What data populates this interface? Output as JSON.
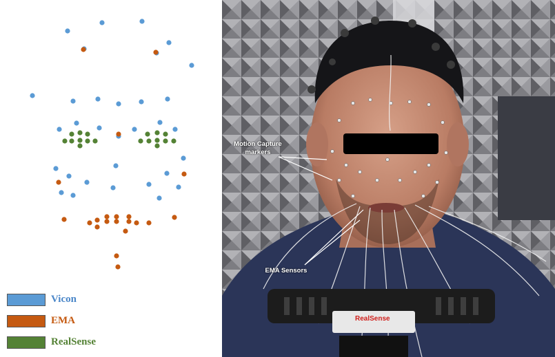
{
  "colors": {
    "vicon": "#5b9bd5",
    "ema": "#c55a11",
    "realsense": "#548235",
    "censor_bar": "#000000"
  },
  "legend": [
    {
      "label": "Vicon",
      "key": "vicon"
    },
    {
      "label": "EMA",
      "key": "ema"
    },
    {
      "label": "RealSense",
      "key": "realsense"
    }
  ],
  "photo": {
    "motion_capture_label_line1": "Motion Capture",
    "motion_capture_label_line2": "markers",
    "ema_sensors_label": "EMA Sensors",
    "camera_brand": "RealSense"
  }
}
